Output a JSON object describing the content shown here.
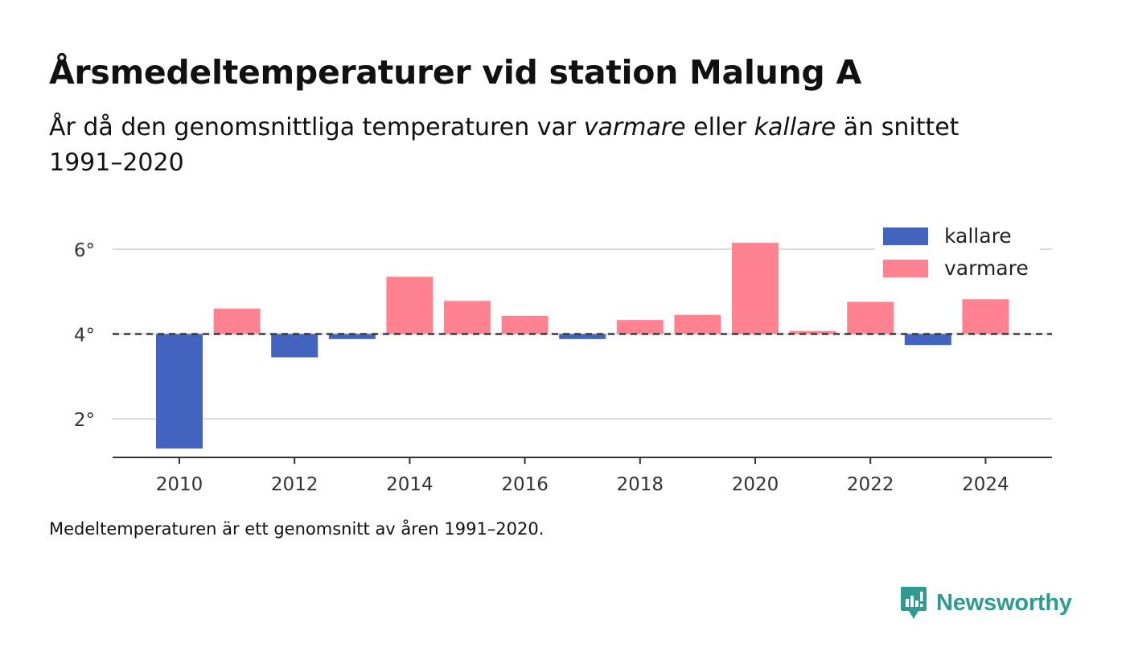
{
  "header": {
    "title": "Årsmedeltemperaturer vid station Malung A",
    "subtitle_parts": [
      "År då den genomsnittliga temperaturen var ",
      "varmare",
      " eller ",
      "kallare",
      " än snittet 1991–2020"
    ]
  },
  "footnote": "Medeltemperaturen är ett genomsnitt av åren 1991–2020.",
  "brand": {
    "name": "Newsworthy",
    "color": "#2f9a8f"
  },
  "chart_data": {
    "type": "bar",
    "baseline": 4.0,
    "x": [
      2010,
      2011,
      2012,
      2013,
      2014,
      2015,
      2016,
      2017,
      2018,
      2019,
      2020,
      2021,
      2022,
      2023,
      2024
    ],
    "values": [
      1.3,
      4.6,
      3.45,
      3.88,
      5.35,
      4.78,
      4.43,
      3.88,
      4.33,
      4.45,
      6.15,
      4.07,
      4.76,
      3.74,
      4.82
    ],
    "ylim": [
      1.0,
      7.0
    ],
    "y_ticks": [
      2,
      4,
      6
    ],
    "y_tick_labels": [
      "2°",
      "4°",
      "6°"
    ],
    "x_ticks": [
      2010,
      2012,
      2014,
      2016,
      2018,
      2020,
      2022,
      2024
    ],
    "x_tick_labels": [
      "2010",
      "2012",
      "2014",
      "2016",
      "2018",
      "2020",
      "2022",
      "2024"
    ],
    "grid": true,
    "legend_position": "top-right",
    "series": [
      {
        "name": "kallare",
        "color": "#4263be"
      },
      {
        "name": "varmare",
        "color": "#ff8291"
      }
    ]
  }
}
